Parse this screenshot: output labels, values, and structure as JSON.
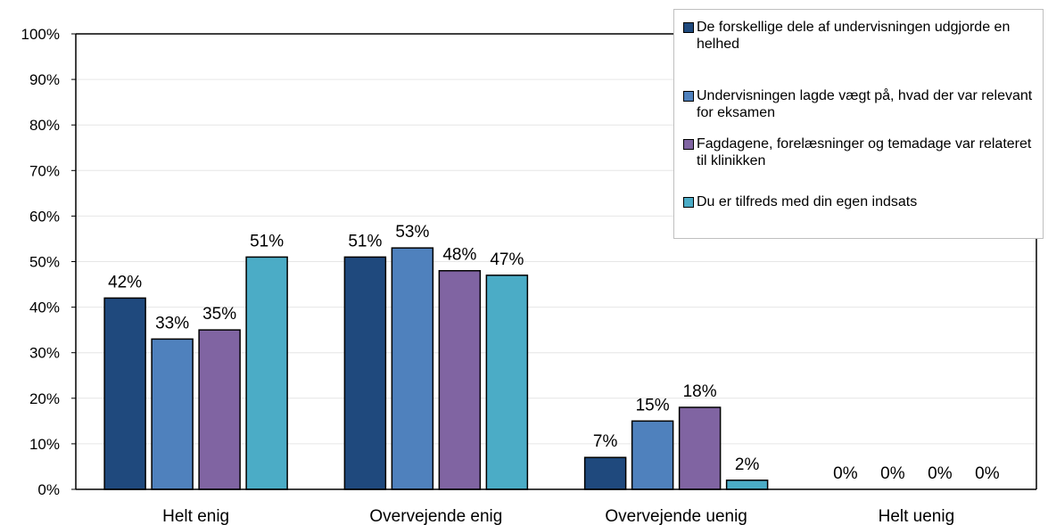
{
  "chart_data": {
    "type": "bar",
    "categories": [
      "Helt enig",
      "Overvejende enig",
      "Overvejende uenig",
      "Helt uenig"
    ],
    "series": [
      {
        "name": "De forskellige dele af undervisningen udgjorde en helhed",
        "color": "#1f497d",
        "values": [
          42,
          51,
          7,
          0
        ],
        "labels": [
          "42%",
          "51%",
          "7%",
          "0%"
        ]
      },
      {
        "name": "Undervisningen lagde vægt på, hvad der var relevant for eksamen",
        "color": "#4f81bd",
        "values": [
          33,
          53,
          15,
          0
        ],
        "labels": [
          "33%",
          "53%",
          "15%",
          "0%"
        ]
      },
      {
        "name": "Fagdagene, forelæsninger og temadage var relateret til klinikken",
        "color": "#8064a2",
        "values": [
          35,
          48,
          18,
          0
        ],
        "labels": [
          "35%",
          "48%",
          "18%",
          "0%"
        ]
      },
      {
        "name": "Du er tilfreds med din egen indsats",
        "color": "#4bacc6",
        "values": [
          51,
          47,
          2,
          0
        ],
        "labels": [
          "51%",
          "47%",
          "2%",
          "0%"
        ]
      }
    ],
    "ylim": [
      0,
      100
    ],
    "yticks": [
      "0%",
      "10%",
      "20%",
      "30%",
      "40%",
      "50%",
      "60%",
      "70%",
      "80%",
      "90%",
      "100%"
    ],
    "grid": true,
    "legend_position": "top-right"
  }
}
